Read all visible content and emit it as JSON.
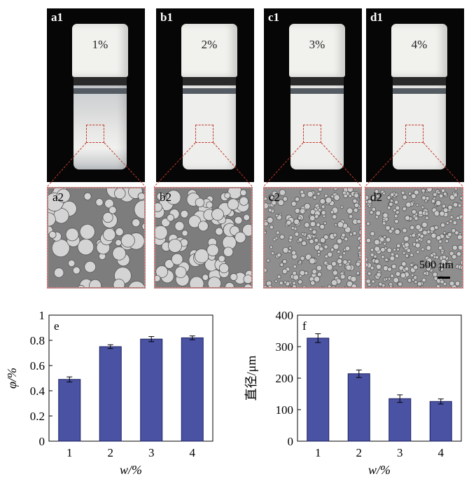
{
  "photos": [
    {
      "label": "a1",
      "concentration": "1%"
    },
    {
      "label": "b1",
      "concentration": "2%"
    },
    {
      "label": "c1",
      "concentration": "3%"
    },
    {
      "label": "d1",
      "concentration": "4%"
    }
  ],
  "micrographs": [
    {
      "label": "a2"
    },
    {
      "label": "b2"
    },
    {
      "label": "c2"
    },
    {
      "label": "d2"
    }
  ],
  "scale_bar": "500 μm",
  "colors": {
    "bar": "#4a52a3",
    "frame_dashed": "#c0392b",
    "background_photo": "#060606"
  },
  "chart_data": [
    {
      "type": "bar",
      "panel": "e",
      "categories": [
        "1",
        "2",
        "3",
        "4"
      ],
      "values": [
        0.49,
        0.75,
        0.81,
        0.82
      ],
      "errors": [
        0.02,
        0.015,
        0.02,
        0.015
      ],
      "ylim": [
        0,
        1
      ],
      "yticks": [
        "0",
        "0.2",
        "0.4",
        "0.6",
        "0.8",
        "1"
      ],
      "xlabel": "w/%",
      "ylabel": "φ/%"
    },
    {
      "type": "bar",
      "panel": "f",
      "categories": [
        "1",
        "2",
        "3",
        "4"
      ],
      "values": [
        327,
        214,
        135,
        126
      ],
      "errors": [
        14,
        12,
        12,
        8
      ],
      "ylim": [
        0,
        400
      ],
      "yticks": [
        "0",
        "100",
        "200",
        "300",
        "400"
      ],
      "xlabel": "w/%",
      "ylabel": "直径/μm"
    }
  ]
}
